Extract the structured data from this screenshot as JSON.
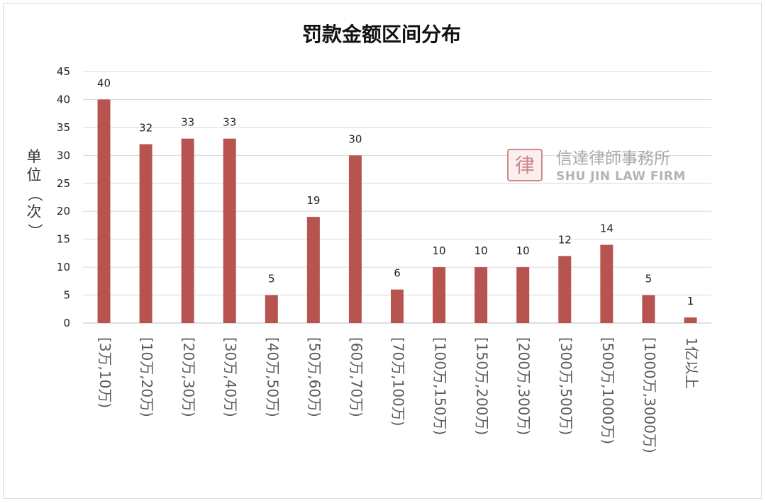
{
  "chart_data": {
    "type": "bar",
    "title": "罚款金额区间分布",
    "ylabel": "单位（次）",
    "ylabel_chars": [
      "单",
      "位",
      "（",
      "次",
      "）"
    ],
    "xlabel": "",
    "ylim": [
      0,
      45
    ],
    "yticks": [
      0,
      5,
      10,
      15,
      20,
      25,
      30,
      35,
      40,
      45
    ],
    "grid": true,
    "legend": "none",
    "categories": [
      "[3万,10万)",
      "[10万,20万)",
      "[20万,30万)",
      "[30万,40万)",
      "[40万,50万)",
      "[50万,60万)",
      "[60万,70万)",
      "[70万,100万)",
      "[100万,150万)",
      "[150万,200万)",
      "[200万,300万)",
      "[300万,500万)",
      "[500万,1000万)",
      "[1000万,3000万)",
      "1亿以上"
    ],
    "values": [
      40,
      32,
      33,
      33,
      5,
      19,
      30,
      6,
      10,
      10,
      10,
      12,
      14,
      5,
      1
    ],
    "bar_color": "#b85450"
  },
  "watermark": {
    "name_cn": "信達律師事務所",
    "name_en": "SHU JIN LAW FIRM",
    "seal_char": "律",
    "color": "#c98a8a"
  }
}
